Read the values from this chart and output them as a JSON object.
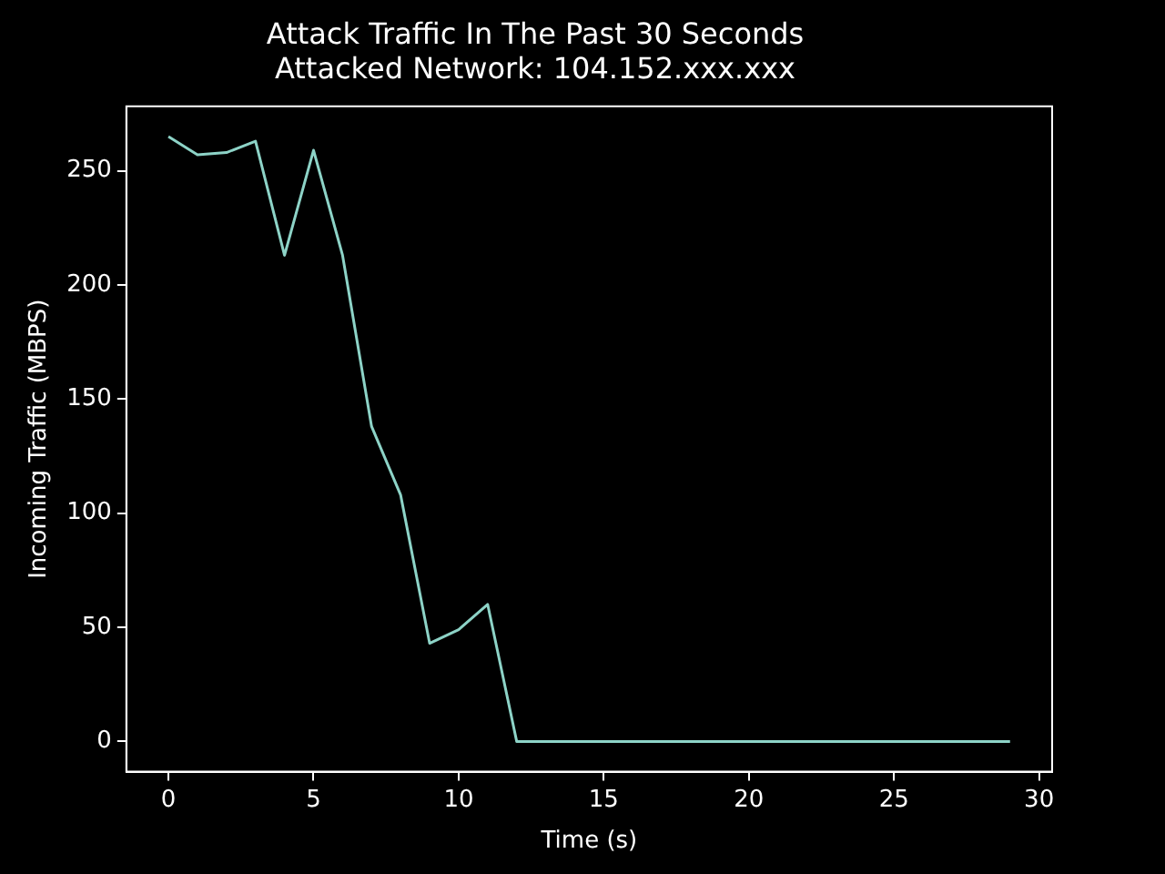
{
  "chart_data": {
    "type": "line",
    "title": "Attack Traffic In The Past 30 Seconds",
    "subtitle": "Attacked Network: 104.152.xxx.xxx",
    "xlabel": "Time (s)",
    "ylabel": "Incoming Traffic (MBPS)",
    "x": [
      0,
      1,
      2,
      3,
      4,
      5,
      6,
      7,
      8,
      9,
      10,
      11,
      12,
      13,
      14,
      15,
      16,
      17,
      18,
      19,
      20,
      21,
      22,
      23,
      24,
      25,
      26,
      27,
      28,
      29
    ],
    "series": [
      {
        "color": "#8dd3c7",
        "values": [
          265,
          257,
          258,
          263,
          213,
          259,
          213,
          138,
          108,
          43,
          49,
          60,
          0,
          0,
          0,
          0,
          0,
          0,
          0,
          0,
          0,
          0,
          0,
          0,
          0,
          0,
          0,
          0,
          0,
          0
        ]
      }
    ],
    "xlim": [
      -1.45,
      30.45
    ],
    "ylim": [
      -13.25,
      278.25
    ],
    "xticks": [
      0,
      5,
      10,
      15,
      20,
      25,
      30
    ],
    "yticks": [
      0,
      50,
      100,
      150,
      200,
      250
    ],
    "grid": false,
    "legend": false,
    "marker": "none",
    "line_style": "solid"
  }
}
